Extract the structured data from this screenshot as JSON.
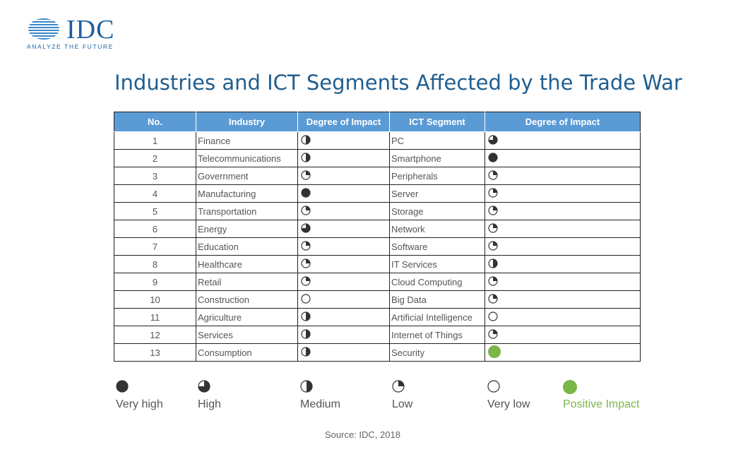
{
  "logo": {
    "brand": "IDC",
    "tagline": "ANALYZE THE FUTURE"
  },
  "title": "Industries and ICT Segments Affected by the Trade War",
  "table": {
    "headers": [
      "No.",
      "Industry",
      "Degree of Impact",
      "ICT Segment",
      "Degree of Impact"
    ],
    "rows": [
      {
        "no": "1",
        "industry": "Finance",
        "industry_impact": "medium",
        "segment": "PC",
        "segment_impact": "high"
      },
      {
        "no": "2",
        "industry": "Telecommunications",
        "industry_impact": "medium",
        "segment": "Smartphone",
        "segment_impact": "very-high"
      },
      {
        "no": "3",
        "industry": "Government",
        "industry_impact": "low",
        "segment": "Peripherals",
        "segment_impact": "low"
      },
      {
        "no": "4",
        "industry": "Manufacturing",
        "industry_impact": "very-high",
        "segment": "Server",
        "segment_impact": "low"
      },
      {
        "no": "5",
        "industry": "Transportation",
        "industry_impact": "low",
        "segment": "Storage",
        "segment_impact": "low"
      },
      {
        "no": "6",
        "industry": "Energy",
        "industry_impact": "high",
        "segment": "Network",
        "segment_impact": "low"
      },
      {
        "no": "7",
        "industry": "Education",
        "industry_impact": "low",
        "segment": "Software",
        "segment_impact": "low"
      },
      {
        "no": "8",
        "industry": "Healthcare",
        "industry_impact": "low",
        "segment": "IT Services",
        "segment_impact": "medium"
      },
      {
        "no": "9",
        "industry": "Retail",
        "industry_impact": "low",
        "segment": "Cloud Computing",
        "segment_impact": "low"
      },
      {
        "no": "10",
        "industry": "Construction",
        "industry_impact": "very-low",
        "segment": "Big Data",
        "segment_impact": "low"
      },
      {
        "no": "11",
        "industry": "Agriculture",
        "industry_impact": "medium",
        "segment": "Artificial Intelligence",
        "segment_impact": "very-low"
      },
      {
        "no": "12",
        "industry": "Services",
        "industry_impact": "medium",
        "segment": "Internet of Things",
        "segment_impact": "low"
      },
      {
        "no": "13",
        "industry": "Consumption",
        "industry_impact": "medium",
        "segment": "Security",
        "segment_impact": "positive"
      }
    ]
  },
  "legend": [
    {
      "key": "very-high",
      "label": "Very high"
    },
    {
      "key": "high",
      "label": "High"
    },
    {
      "key": "medium",
      "label": "Medium"
    },
    {
      "key": "low",
      "label": "Low"
    },
    {
      "key": "very-low",
      "label": "Very low"
    },
    {
      "key": "positive",
      "label": "Positive Impact"
    }
  ],
  "colors": {
    "title": "#1f5e8f",
    "header_bg": "#5b9bd5",
    "positive": "#7ab648",
    "icon": "#333333"
  },
  "source": "Source:  IDC, 2018"
}
